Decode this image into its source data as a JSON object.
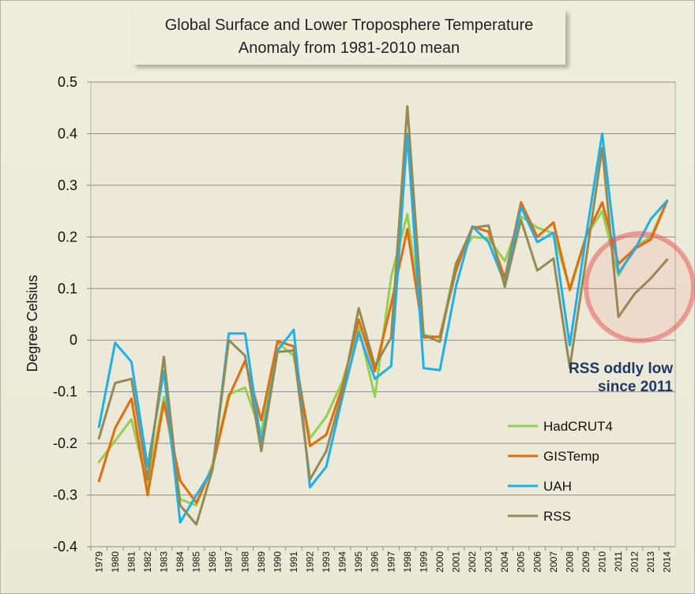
{
  "chart_data": {
    "type": "line",
    "title": "Global Surface and Lower Troposphere Temperature",
    "subtitle": "Anomaly from 1981-2010 mean",
    "xlabel": "",
    "ylabel": "Degree Celsius",
    "ylim": [
      -0.4,
      0.5
    ],
    "yticks": [
      -0.4,
      -0.3,
      -0.2,
      -0.1,
      0,
      0.1,
      0.2,
      0.3,
      0.4,
      0.5
    ],
    "ytick_labels": [
      "-0.4",
      "-0.3",
      "-0.2",
      "-0.1",
      "0",
      "0.1",
      "0.2",
      "0.3",
      "0.4",
      "0.5"
    ],
    "grid": true,
    "legend_position": "bottom-right",
    "categories": [
      "1979",
      "1980",
      "1981",
      "1982",
      "1983",
      "1984",
      "1985",
      "1986",
      "1987",
      "1988",
      "1989",
      "1990",
      "1991",
      "1992",
      "1993",
      "1994",
      "1995",
      "1996",
      "1997",
      "1998",
      "1999",
      "2000",
      "2001",
      "2002",
      "2003",
      "2004",
      "2005",
      "2006",
      "2007",
      "2008",
      "2009",
      "2010",
      "2011",
      "2012",
      "2013",
      "2014"
    ],
    "series": [
      {
        "name": "HadCRUT4",
        "color": "#92d050",
        "values": [
          -0.236,
          -0.195,
          -0.153,
          -0.283,
          -0.11,
          -0.308,
          -0.32,
          -0.24,
          -0.105,
          -0.092,
          -0.18,
          -0.005,
          -0.03,
          -0.19,
          -0.148,
          -0.08,
          0.025,
          -0.11,
          0.123,
          0.244,
          0.01,
          0.005,
          0.15,
          0.2,
          0.197,
          0.153,
          0.24,
          0.218,
          0.207,
          0.1,
          0.201,
          0.25,
          0.125,
          0.18,
          0.2,
          0.27
        ]
      },
      {
        "name": "GISTemp",
        "color": "#e46c0a",
        "values": [
          -0.273,
          -0.17,
          -0.113,
          -0.3,
          -0.12,
          -0.272,
          -0.315,
          -0.245,
          -0.11,
          -0.04,
          -0.155,
          -0.002,
          -0.012,
          -0.205,
          -0.183,
          -0.09,
          0.04,
          -0.06,
          0.07,
          0.215,
          0.005,
          0.007,
          0.135,
          0.22,
          0.21,
          0.12,
          0.267,
          0.2,
          0.228,
          0.097,
          0.2,
          0.267,
          0.148,
          0.177,
          0.195,
          0.27
        ]
      },
      {
        "name": "UAH",
        "color": "#1cb0ec",
        "values": [
          -0.168,
          -0.005,
          -0.042,
          -0.245,
          -0.06,
          -0.353,
          -0.3,
          -0.25,
          0.013,
          0.013,
          -0.2,
          -0.02,
          0.02,
          -0.285,
          -0.245,
          -0.11,
          0.015,
          -0.075,
          -0.05,
          0.4,
          -0.054,
          -0.058,
          0.105,
          0.22,
          0.19,
          0.11,
          0.258,
          0.19,
          0.208,
          -0.01,
          0.2,
          0.4,
          0.13,
          0.175,
          0.235,
          0.27
        ]
      },
      {
        "name": "RSS",
        "color": "#948a54",
        "values": [
          -0.19,
          -0.083,
          -0.075,
          -0.27,
          -0.032,
          -0.32,
          -0.357,
          -0.25,
          0,
          -0.03,
          -0.215,
          -0.023,
          -0.02,
          -0.27,
          -0.215,
          -0.1,
          0.062,
          -0.05,
          0.005,
          0.453,
          0.01,
          -0.003,
          0.148,
          0.218,
          0.222,
          0.103,
          0.233,
          0.135,
          0.158,
          -0.053,
          0.155,
          0.372,
          0.045,
          0.09,
          0.12,
          0.156
        ]
      }
    ],
    "annotations": [
      {
        "text_lines": [
          "RSS oddly low",
          "since 2011"
        ],
        "color": "#1f3864"
      }
    ]
  }
}
